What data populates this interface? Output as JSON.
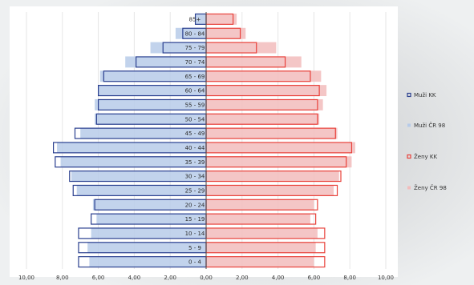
{
  "chart_data": {
    "type": "bar",
    "orientation": "horizontal-population-pyramid",
    "categories": [
      "0 - 4",
      "5 - 9",
      "10 - 14",
      "15 - 19",
      "20 - 24",
      "25 - 29",
      "30 - 34",
      "35 - 39",
      "40 - 44",
      "45 - 49",
      "50 - 54",
      "55 - 59",
      "60 - 64",
      "65 - 69",
      "70 - 74",
      "75 - 79",
      "80 - 84",
      "85+"
    ],
    "series": [
      {
        "name": "Muži KK",
        "side": "left",
        "style": "outline",
        "color": "#2a3f8f",
        "values": [
          7.1,
          7.1,
          7.1,
          6.4,
          6.2,
          7.4,
          7.6,
          8.4,
          8.5,
          7.3,
          6.1,
          6.0,
          6.0,
          5.7,
          3.9,
          2.4,
          1.3,
          0.6
        ]
      },
      {
        "name": "Muži ČR 98",
        "side": "left",
        "style": "fill",
        "color": "#b7cbe9",
        "values": [
          6.5,
          6.6,
          6.4,
          6.1,
          6.3,
          7.2,
          7.5,
          8.1,
          8.3,
          7.0,
          6.2,
          6.2,
          6.0,
          5.9,
          4.5,
          3.1,
          1.7,
          0.6
        ]
      },
      {
        "name": "Ženy KK",
        "side": "right",
        "style": "outline",
        "color": "#e8413a",
        "values": [
          6.6,
          6.6,
          6.6,
          6.1,
          6.2,
          7.3,
          7.5,
          7.8,
          8.1,
          7.2,
          6.2,
          6.2,
          6.3,
          5.8,
          4.4,
          2.8,
          1.9,
          1.5
        ]
      },
      {
        "name": "Ženy ČR 98",
        "side": "right",
        "style": "fill",
        "color": "#f2bcbc",
        "values": [
          6.0,
          6.1,
          6.2,
          5.8,
          6.0,
          7.1,
          7.4,
          8.1,
          8.3,
          7.3,
          6.3,
          6.5,
          6.7,
          6.4,
          5.3,
          3.9,
          2.2,
          1.7
        ]
      }
    ],
    "x_ticks": [
      "10,00",
      "8,00",
      "6,00",
      "4,00",
      "2,00",
      "0,00",
      "2,00",
      "4,00",
      "6,00",
      "8,00",
      "10,00"
    ],
    "xlim": [
      -10,
      10
    ],
    "legend_position": "right",
    "grid": true
  }
}
